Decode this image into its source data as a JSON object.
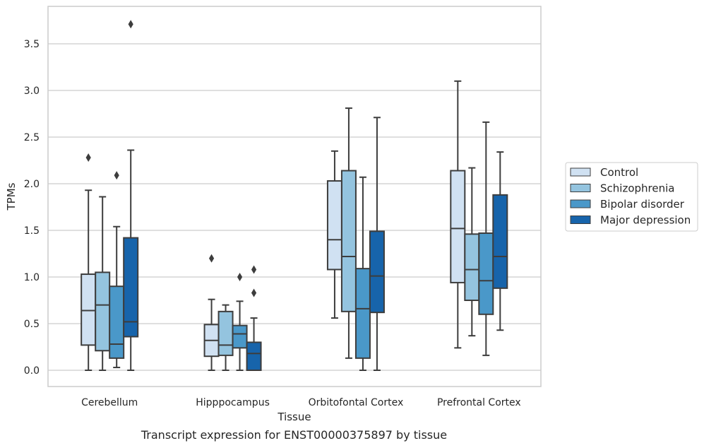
{
  "chart_data": {
    "type": "box",
    "xlabel": "Tissue",
    "ylabel": "TPMs",
    "caption": "Transcript expression for ENST00000375897 by tissue",
    "ylim": [
      -0.17,
      3.9
    ],
    "yticks": [
      "0.0",
      "0.5",
      "1.0",
      "1.5",
      "2.0",
      "2.5",
      "3.0",
      "3.5"
    ],
    "grid": "horizontal",
    "legend_position": "right",
    "categories": [
      "Cerebellum",
      "Hipppocampus",
      "Orbitofontal Cortex",
      "Prefrontal Cortex"
    ],
    "series": [
      {
        "name": "Control",
        "color": "#d0e1f2",
        "boxes": [
          {
            "whislo": 0.0,
            "q1": 0.27,
            "med": 0.64,
            "q3": 1.03,
            "whishi": 1.93,
            "fliers": [
              2.28
            ]
          },
          {
            "whislo": 0.0,
            "q1": 0.15,
            "med": 0.32,
            "q3": 0.49,
            "whishi": 0.76,
            "fliers": [
              1.2
            ]
          },
          {
            "whislo": 0.56,
            "q1": 1.08,
            "med": 1.4,
            "q3": 2.03,
            "whishi": 2.35,
            "fliers": []
          },
          {
            "whislo": 0.24,
            "q1": 0.94,
            "med": 1.52,
            "q3": 2.14,
            "whishi": 3.1,
            "fliers": []
          }
        ]
      },
      {
        "name": "Schizophrenia",
        "color": "#94c4df",
        "boxes": [
          {
            "whislo": 0.0,
            "q1": 0.21,
            "med": 0.7,
            "q3": 1.05,
            "whishi": 1.86,
            "fliers": []
          },
          {
            "whislo": 0.0,
            "q1": 0.16,
            "med": 0.27,
            "q3": 0.63,
            "whishi": 0.7,
            "fliers": []
          },
          {
            "whislo": 0.13,
            "q1": 0.63,
            "med": 1.22,
            "q3": 2.14,
            "whishi": 2.81,
            "fliers": []
          },
          {
            "whislo": 0.37,
            "q1": 0.75,
            "med": 1.08,
            "q3": 1.46,
            "whishi": 2.17,
            "fliers": []
          }
        ]
      },
      {
        "name": "Bipolar disorder",
        "color": "#4a98c9",
        "boxes": [
          {
            "whislo": 0.03,
            "q1": 0.13,
            "med": 0.28,
            "q3": 0.9,
            "whishi": 1.54,
            "fliers": [
              2.09
            ]
          },
          {
            "whislo": 0.0,
            "q1": 0.24,
            "med": 0.39,
            "q3": 0.48,
            "whishi": 0.74,
            "fliers": [
              1.0
            ]
          },
          {
            "whislo": 0.0,
            "q1": 0.13,
            "med": 0.66,
            "q3": 1.09,
            "whishi": 2.07,
            "fliers": []
          },
          {
            "whislo": 0.16,
            "q1": 0.6,
            "med": 0.96,
            "q3": 1.47,
            "whishi": 2.66,
            "fliers": []
          }
        ]
      },
      {
        "name": "Major depression",
        "color": "#1764ab",
        "boxes": [
          {
            "whislo": 0.0,
            "q1": 0.36,
            "med": 0.52,
            "q3": 1.42,
            "whishi": 2.36,
            "fliers": [
              3.71
            ]
          },
          {
            "whislo": 0.0,
            "q1": 0.0,
            "med": 0.18,
            "q3": 0.3,
            "whishi": 0.56,
            "fliers": [
              1.08,
              0.83
            ]
          },
          {
            "whislo": 0.0,
            "q1": 0.62,
            "med": 1.01,
            "q3": 1.49,
            "whishi": 2.71,
            "fliers": []
          },
          {
            "whislo": 0.43,
            "q1": 0.88,
            "med": 1.22,
            "q3": 1.88,
            "whishi": 2.34,
            "fliers": []
          }
        ]
      }
    ]
  }
}
